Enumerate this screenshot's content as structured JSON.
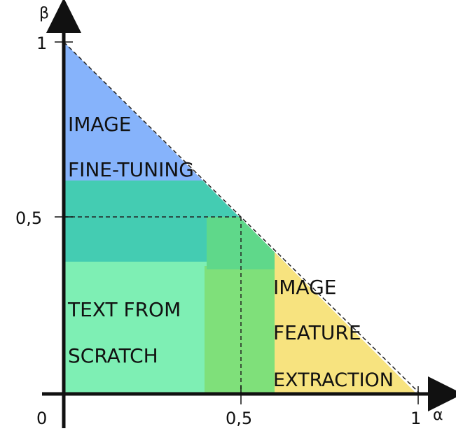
{
  "axes": {
    "x_label": "α",
    "y_label": "β",
    "origin_label": "0",
    "x_ticks": [
      "0,5",
      "1"
    ],
    "y_ticks": [
      "1",
      "0,5"
    ]
  },
  "regions": {
    "image_finetuning": {
      "lines": [
        "IMAGE",
        "FINE-TUNING"
      ],
      "color": "#86b3fb"
    },
    "teal_band": {
      "color": "#44ccb2"
    },
    "text_from_scratch": {
      "lines": [
        "TEXT FROM",
        "SCRATCH"
      ],
      "color": "#7eefb4"
    },
    "green_overlap": {
      "color": "#5fd88a"
    },
    "light_green_strip": {
      "color": "#7fe07a"
    },
    "image_feature_extraction": {
      "lines": [
        "IMAGE",
        "FEATURE",
        "EXTRACTION"
      ],
      "color": "#f7e37f"
    }
  }
}
